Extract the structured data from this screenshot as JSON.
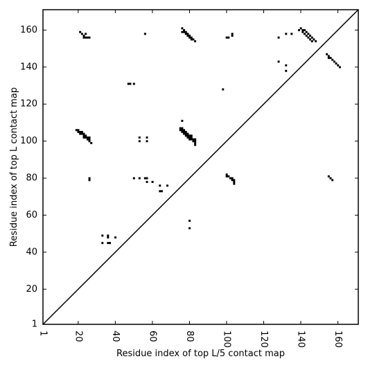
{
  "chart_data": {
    "type": "scatter",
    "marker": "square",
    "xlabel": "Residue index of top L/5 contact map",
    "ylabel": "Residue index of top L contact map",
    "xlim": [
      1,
      171
    ],
    "ylim": [
      1,
      171
    ],
    "xticks": [
      1,
      20,
      40,
      60,
      80,
      100,
      120,
      140,
      160
    ],
    "yticks": [
      1,
      20,
      40,
      60,
      80,
      100,
      120,
      140,
      160
    ],
    "diagonal": true,
    "colors": {
      "points": "#000000",
      "diagonal": "#000000",
      "background": "#ffffff"
    },
    "points": [
      [
        21,
        159
      ],
      [
        22,
        158
      ],
      [
        23,
        157
      ],
      [
        24,
        158
      ],
      [
        23,
        156
      ],
      [
        24,
        156
      ],
      [
        25,
        156
      ],
      [
        26,
        156
      ],
      [
        56,
        158
      ],
      [
        76,
        161
      ],
      [
        77,
        160
      ],
      [
        76,
        159
      ],
      [
        77,
        159
      ],
      [
        78,
        159
      ],
      [
        78,
        158
      ],
      [
        79,
        158
      ],
      [
        79,
        157
      ],
      [
        80,
        157
      ],
      [
        81,
        156
      ],
      [
        80,
        156
      ],
      [
        81,
        155
      ],
      [
        82,
        155
      ],
      [
        83,
        154
      ],
      [
        100,
        156
      ],
      [
        101,
        156
      ],
      [
        103,
        157
      ],
      [
        103,
        158
      ],
      [
        128,
        156
      ],
      [
        132,
        158
      ],
      [
        135,
        158
      ],
      [
        139,
        160
      ],
      [
        140,
        161
      ],
      [
        141,
        160
      ],
      [
        141,
        159
      ],
      [
        142,
        158
      ],
      [
        142,
        160
      ],
      [
        143,
        159
      ],
      [
        143,
        157
      ],
      [
        144,
        158
      ],
      [
        144,
        156
      ],
      [
        145,
        157
      ],
      [
        145,
        155
      ],
      [
        146,
        156
      ],
      [
        146,
        154
      ],
      [
        147,
        155
      ],
      [
        148,
        154
      ],
      [
        128,
        143
      ],
      [
        132,
        141
      ],
      [
        132,
        138
      ],
      [
        154,
        147
      ],
      [
        155,
        146
      ],
      [
        155,
        145
      ],
      [
        156,
        145
      ],
      [
        157,
        144
      ],
      [
        158,
        143
      ],
      [
        159,
        142
      ],
      [
        160,
        141
      ],
      [
        161,
        140
      ],
      [
        98,
        128
      ],
      [
        47,
        131
      ],
      [
        48,
        131
      ],
      [
        50,
        131
      ],
      [
        76,
        111
      ],
      [
        19,
        106
      ],
      [
        20,
        106
      ],
      [
        20,
        105
      ],
      [
        21,
        105
      ],
      [
        22,
        105
      ],
      [
        21,
        104
      ],
      [
        22,
        104
      ],
      [
        23,
        104
      ],
      [
        23,
        103
      ],
      [
        24,
        103
      ],
      [
        23,
        102
      ],
      [
        24,
        102
      ],
      [
        25,
        102
      ],
      [
        26,
        102
      ],
      [
        25,
        101
      ],
      [
        26,
        101
      ],
      [
        26,
        100
      ],
      [
        27,
        99
      ],
      [
        53,
        102
      ],
      [
        57,
        102
      ],
      [
        53,
        100
      ],
      [
        57,
        100
      ],
      [
        75,
        107
      ],
      [
        76,
        107
      ],
      [
        75,
        106
      ],
      [
        76,
        106
      ],
      [
        77,
        106
      ],
      [
        76,
        105
      ],
      [
        77,
        105
      ],
      [
        78,
        105
      ],
      [
        77,
        104
      ],
      [
        78,
        104
      ],
      [
        79,
        104
      ],
      [
        78,
        103
      ],
      [
        79,
        103
      ],
      [
        80,
        103
      ],
      [
        81,
        103
      ],
      [
        79,
        102
      ],
      [
        80,
        102
      ],
      [
        81,
        102
      ],
      [
        80,
        101
      ],
      [
        81,
        101
      ],
      [
        82,
        101
      ],
      [
        83,
        101
      ],
      [
        82,
        100
      ],
      [
        83,
        100
      ],
      [
        83,
        99
      ],
      [
        83,
        98
      ],
      [
        26,
        80
      ],
      [
        26,
        79
      ],
      [
        50,
        80
      ],
      [
        53,
        80
      ],
      [
        56,
        80
      ],
      [
        57,
        80
      ],
      [
        57,
        78
      ],
      [
        60,
        78
      ],
      [
        64,
        76
      ],
      [
        68,
        76
      ],
      [
        64,
        73
      ],
      [
        65,
        73
      ],
      [
        100,
        82
      ],
      [
        100,
        81
      ],
      [
        101,
        81
      ],
      [
        102,
        80
      ],
      [
        103,
        80
      ],
      [
        103,
        79
      ],
      [
        104,
        79
      ],
      [
        104,
        78
      ],
      [
        104,
        77
      ],
      [
        155,
        81
      ],
      [
        156,
        80
      ],
      [
        157,
        79
      ],
      [
        80,
        57
      ],
      [
        80,
        53
      ],
      [
        33,
        49
      ],
      [
        36,
        49
      ],
      [
        36,
        48
      ],
      [
        40,
        48
      ],
      [
        33,
        45
      ],
      [
        36,
        45
      ],
      [
        37,
        45
      ]
    ]
  }
}
